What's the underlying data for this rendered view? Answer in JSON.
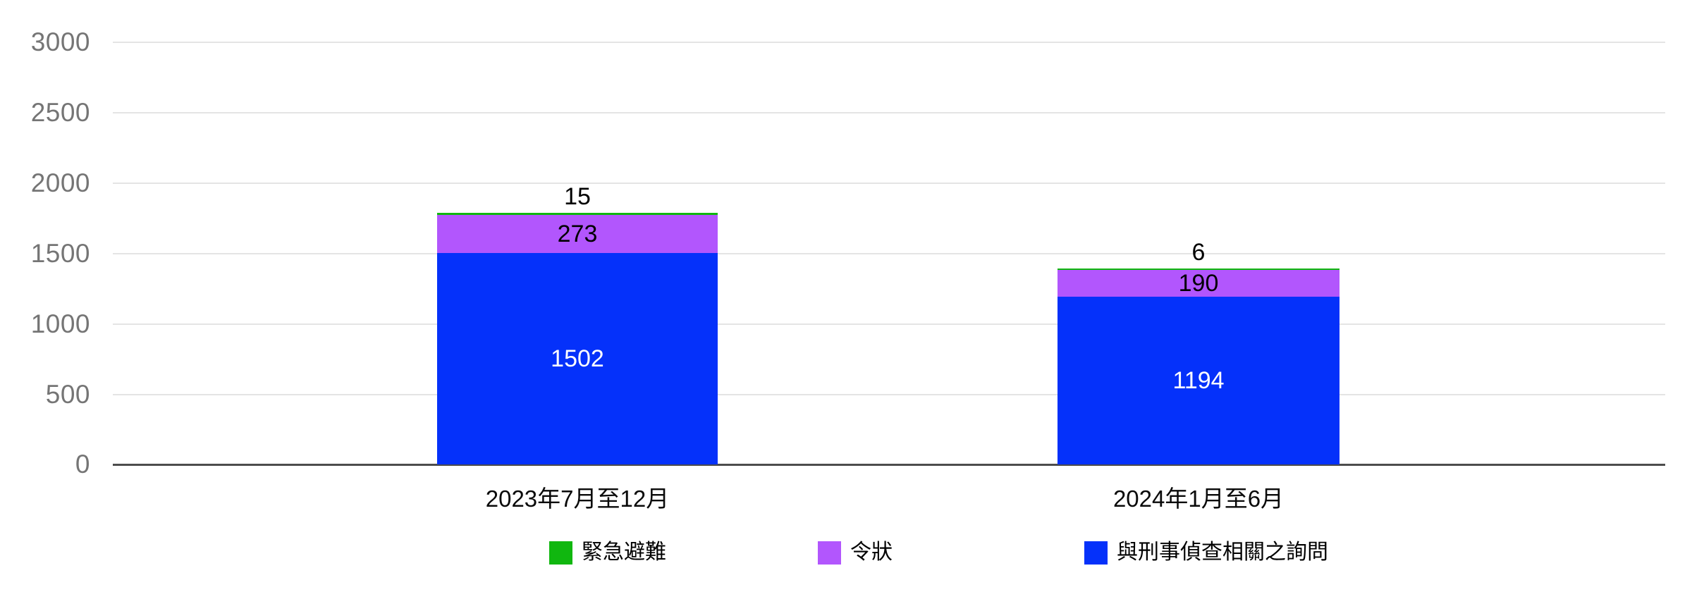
{
  "chart_data": {
    "type": "bar",
    "stacked": true,
    "title": "",
    "xlabel": "",
    "ylabel": "",
    "categories": [
      "2023年7月至12月",
      "2024年1月至6月"
    ],
    "series": [
      {
        "name": "緊急避難",
        "color": "#10b70f",
        "values": [
          15,
          6
        ]
      },
      {
        "name": "令狀",
        "color": "#b256fd",
        "values": [
          273,
          190
        ]
      },
      {
        "name": "與刑事偵查相關之詢問",
        "color": "#0531fa",
        "values": [
          1502,
          1194
        ]
      }
    ],
    "ylim": [
      0,
      3000
    ],
    "yticks": [
      0,
      500,
      1000,
      1500,
      2000,
      2500,
      3000
    ],
    "grid": true,
    "legend_position": "bottom",
    "colors": {
      "grid_line": "#e4e4e4",
      "axis_line": "#4c4c4c",
      "tick_text": "#757575",
      "label_text": "#000000",
      "label_text_on_bar": "#ffffff",
      "background": "#ffffff"
    }
  }
}
